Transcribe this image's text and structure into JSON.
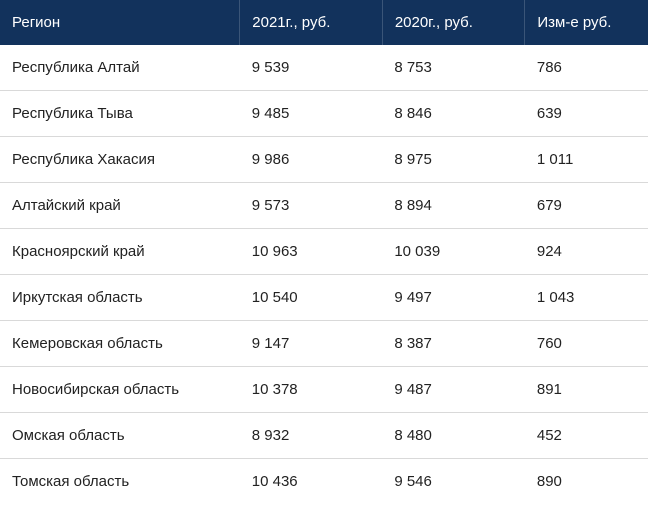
{
  "table": {
    "header_bg": "#12325c",
    "header_color": "#ffffff",
    "header_border": "#3a5578",
    "cell_color": "#222222",
    "cell_border": "#d9d9d9",
    "header_fontsize": 15,
    "cell_fontsize": 15,
    "columns": [
      {
        "label": "Регион",
        "width": "37%"
      },
      {
        "label": "2021г., руб.",
        "width": "22%"
      },
      {
        "label": "2020г., руб.",
        "width": "22%"
      },
      {
        "label": "Изм-е руб.",
        "width": "19%"
      }
    ],
    "rows": [
      {
        "region": "Республика Алтай",
        "y2021": "9 539",
        "y2020": "8 753",
        "diff": "786"
      },
      {
        "region": "Республика Тыва",
        "y2021": "9 485",
        "y2020": "8 846",
        "diff": "639"
      },
      {
        "region": "Республика Хакасия",
        "y2021": "9 986",
        "y2020": "8 975",
        "diff": "1 011"
      },
      {
        "region": "Алтайский край",
        "y2021": "9 573",
        "y2020": "8 894",
        "diff": "679"
      },
      {
        "region": "Красноярский край",
        "y2021": "10 963",
        "y2020": "10 039",
        "diff": "924"
      },
      {
        "region": "Иркутская область",
        "y2021": "10 540",
        "y2020": "9 497",
        "diff": "1 043"
      },
      {
        "region": "Кемеровская область",
        "y2021": "9 147",
        "y2020": "8 387",
        "diff": "760"
      },
      {
        "region": "Новосибирская область",
        "y2021": "10 378",
        "y2020": "9 487",
        "diff": "891"
      },
      {
        "region": "Омская область",
        "y2021": "8 932",
        "y2020": "8 480",
        "diff": "452"
      },
      {
        "region": "Томская область",
        "y2021": "10 436",
        "y2020": "9 546",
        "diff": "890"
      }
    ]
  }
}
